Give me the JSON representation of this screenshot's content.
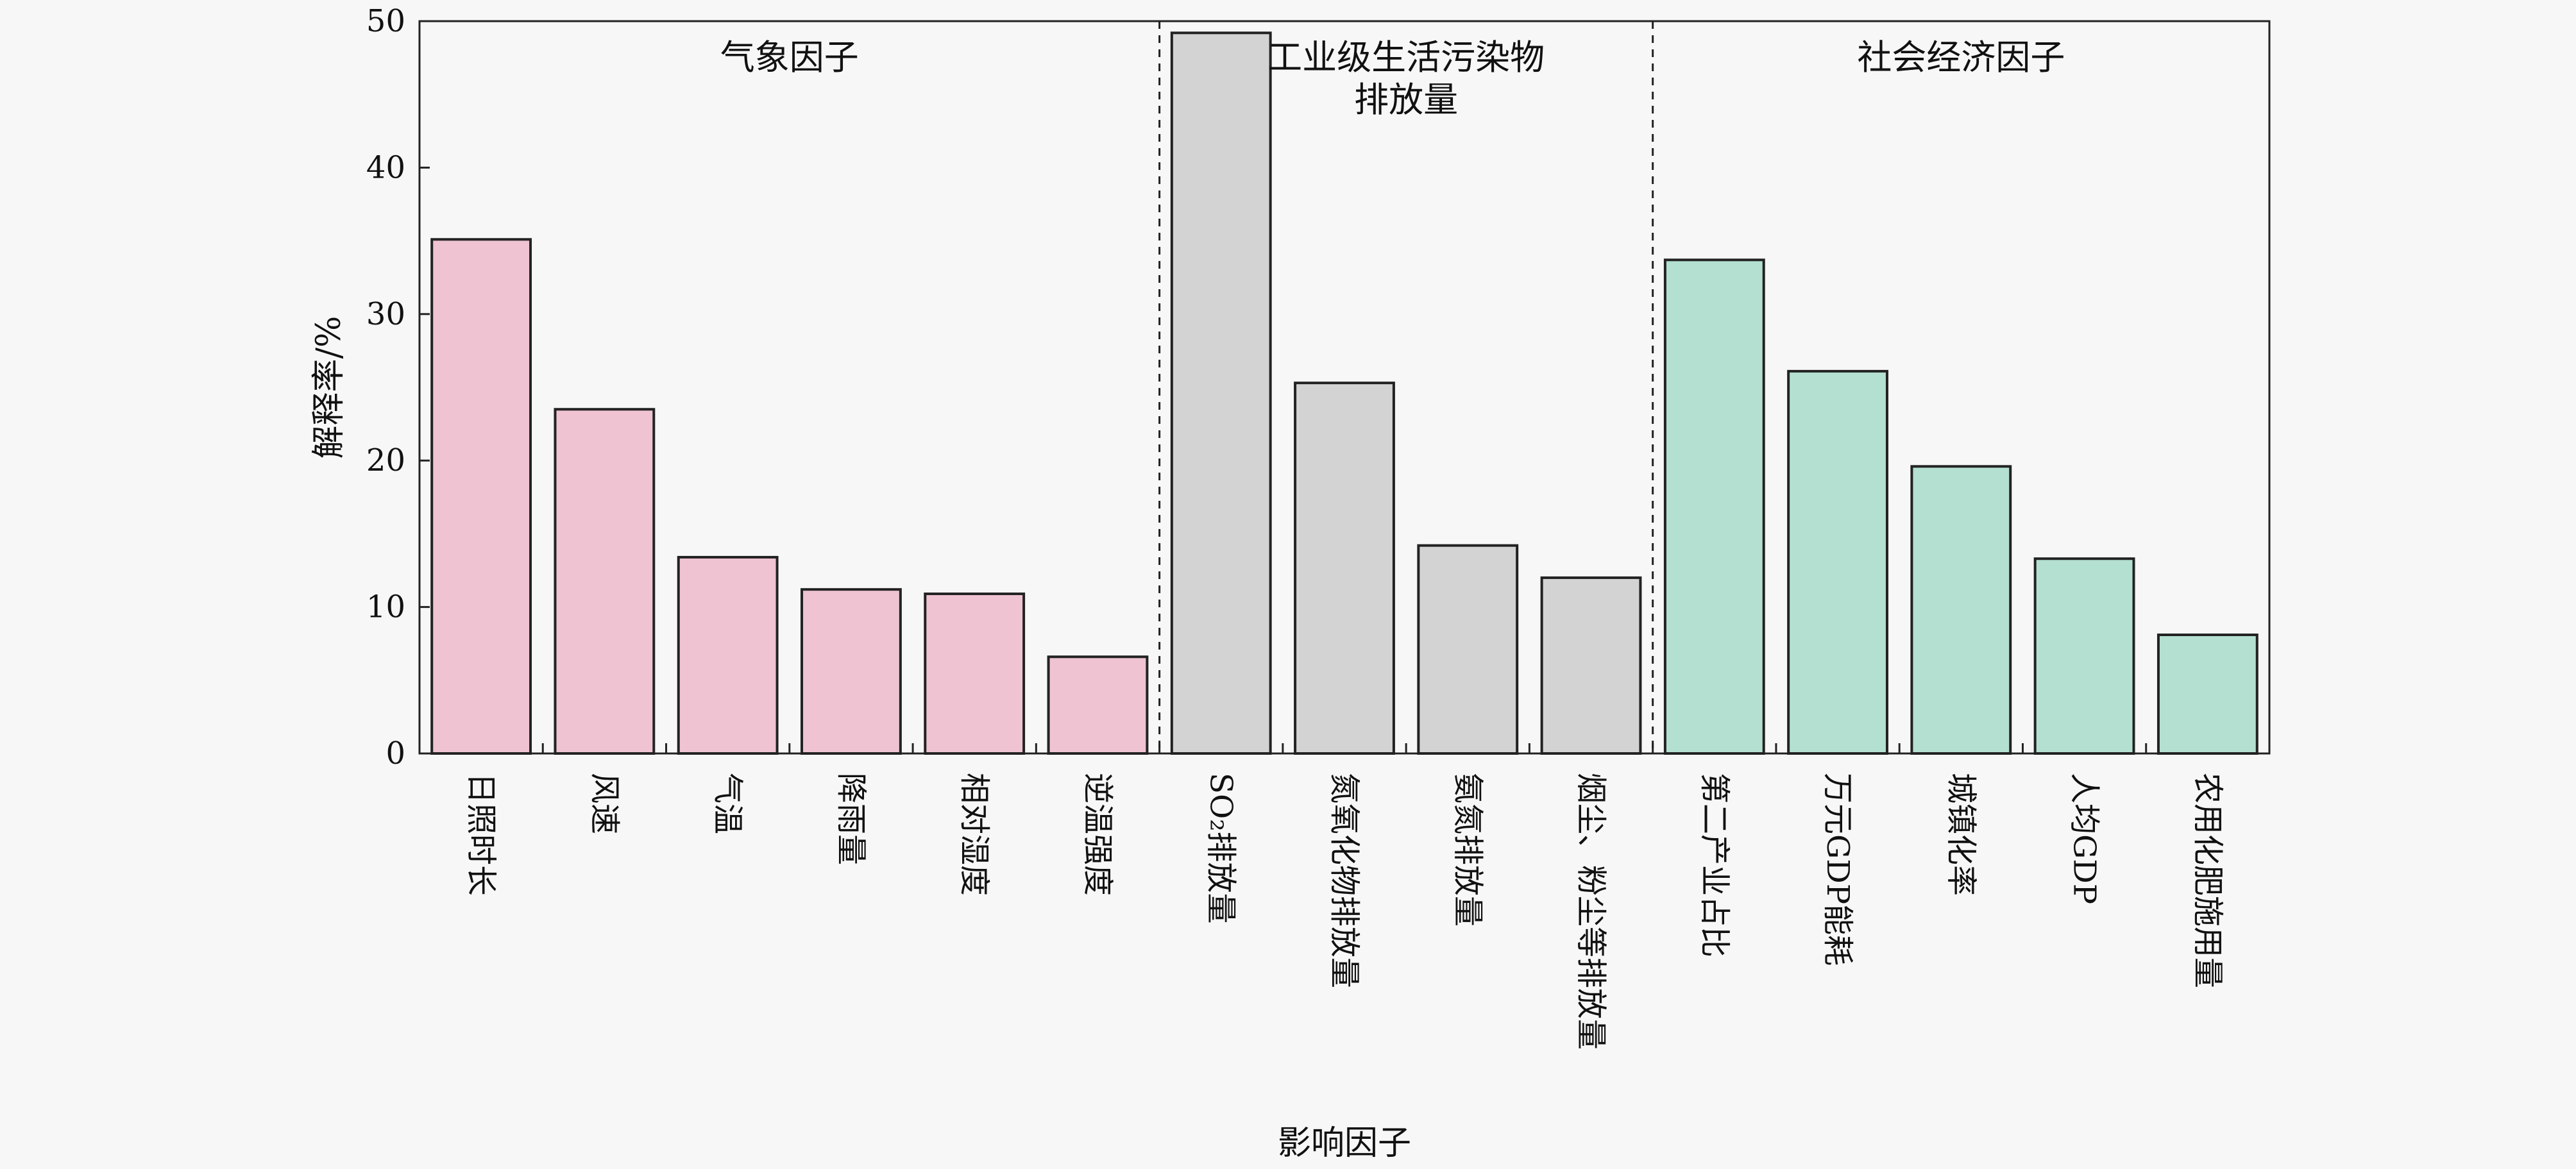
{
  "chart_data": {
    "type": "bar",
    "xlabel": "影响因子",
    "ylabel": "解释率/%",
    "ylim": [
      0,
      50
    ],
    "yticks": [
      0,
      10,
      20,
      30,
      40,
      50
    ],
    "grid": false,
    "groups": [
      {
        "name": "气象因子",
        "color": "#efc3d2",
        "categories": [
          "日照时长",
          "风速",
          "气温",
          "降雨量",
          "相对湿度",
          "逆温强度"
        ],
        "values": [
          35.1,
          23.5,
          13.4,
          11.2,
          10.9,
          6.6
        ]
      },
      {
        "name": "工业级生活污染物排放量",
        "name_lines": [
          "工业级生活污染物",
          "排放量"
        ],
        "color": "#d3d3d3",
        "categories": [
          "SO₂排放量",
          "氮氧化物排放量",
          "氨氮排放量",
          "烟尘、粉尘等排放量"
        ],
        "values": [
          49.2,
          25.3,
          14.2,
          12.0
        ]
      },
      {
        "name": "社会经济因子",
        "color": "#b3e0d1",
        "categories": [
          "第二产业占比",
          "万元GDP能耗",
          "城镇化率",
          "人均GDP",
          "农用化肥施用量"
        ],
        "values": [
          33.7,
          26.1,
          19.6,
          13.3,
          8.1
        ]
      }
    ]
  }
}
